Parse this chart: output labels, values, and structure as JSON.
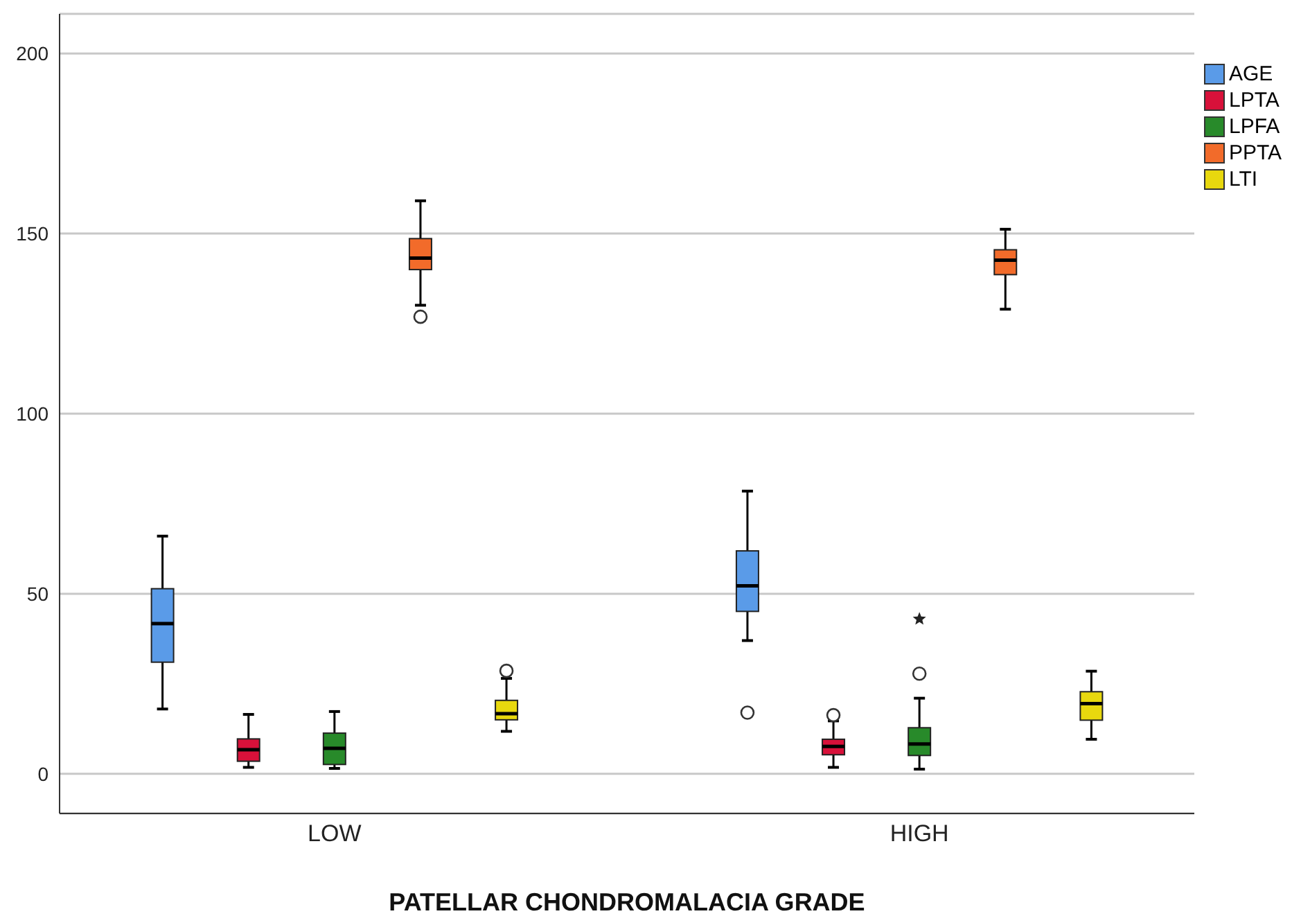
{
  "chart_data": {
    "type": "box",
    "xlabel": "PATELLAR CHONDROMALACIA GRADE",
    "categories": [
      "LOW",
      "HIGH"
    ],
    "ylim": [
      -11,
      211
    ],
    "yticks": [
      0,
      50,
      100,
      150,
      200
    ],
    "grid": "y",
    "legend": "top right",
    "series": [
      {
        "name": "AGE",
        "color": "#5a9be8",
        "boxes": [
          {
            "low": 18,
            "q1": 31,
            "median": 41.7,
            "q3": 51.4,
            "high": 66
          },
          {
            "low": 37,
            "q1": 45.1,
            "median": 52.2,
            "q3": 61.9,
            "high": 78.5,
            "outliers": [
              17
            ]
          }
        ]
      },
      {
        "name": "LPTA",
        "color": "#d8113a",
        "boxes": [
          {
            "low": 1.8,
            "q1": 3.5,
            "median": 6.7,
            "q3": 9.7,
            "high": 16.5
          },
          {
            "low": 1.8,
            "q1": 5.3,
            "median": 7.6,
            "q3": 9.6,
            "high": 14.7,
            "outliers": [
              16.3
            ]
          }
        ]
      },
      {
        "name": "LPFA",
        "color": "#288a2a",
        "boxes": [
          {
            "low": 1.5,
            "q1": 2.6,
            "median": 7.1,
            "q3": 11.3,
            "high": 17.3
          },
          {
            "low": 1.3,
            "q1": 5.1,
            "median": 8.3,
            "q3": 12.8,
            "high": 21,
            "outliers": [
              27.8,
              43
            ]
          }
        ]
      },
      {
        "name": "PPTA",
        "color": "#f26b2a",
        "boxes": [
          {
            "low": 130.1,
            "q1": 140,
            "median": 143.2,
            "q3": 148.6,
            "high": 159.1,
            "outliers": [
              126.9
            ]
          },
          {
            "low": 129,
            "q1": 138.6,
            "median": 142.6,
            "q3": 145.5,
            "high": 151.2
          }
        ]
      },
      {
        "name": "LTI",
        "color": "#e8d80e",
        "boxes": [
          {
            "low": 11.8,
            "q1": 15,
            "median": 16.7,
            "q3": 20.4,
            "high": 26.5,
            "outliers": [
              28.6
            ]
          },
          {
            "low": 9.6,
            "q1": 14.9,
            "median": 19.5,
            "q3": 22.8,
            "high": 28.5
          }
        ]
      }
    ]
  }
}
